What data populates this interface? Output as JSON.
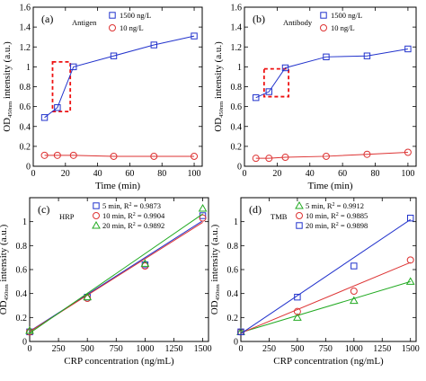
{
  "chart_data": [
    {
      "type": "line",
      "panel_label": "(a)",
      "annotation": "Antigen",
      "xlabel": "Time (min)",
      "ylabel_main": "OD",
      "ylabel_sub": "450nm",
      "ylabel_rest": " intensity (a.u.)",
      "xlim": [
        0,
        105
      ],
      "ylim": [
        0,
        1.6
      ],
      "xticks": [
        0,
        20,
        40,
        60,
        80,
        100
      ],
      "yticks": [
        0,
        0.2,
        0.4,
        0.6,
        0.8,
        1.0,
        1.2,
        1.4,
        1.6
      ],
      "legend_position": "top-right",
      "highlight": {
        "x": [
          12,
          23
        ],
        "y": [
          0.55,
          1.05
        ]
      },
      "series": [
        {
          "name": "1500 ng/L",
          "color": "#2233cc",
          "marker": "square",
          "x": [
            7,
            15,
            25,
            50,
            75,
            100
          ],
          "y": [
            0.49,
            0.59,
            1.0,
            1.11,
            1.22,
            1.31
          ]
        },
        {
          "name": "10 ng/L",
          "color": "#dd3333",
          "marker": "circle",
          "x": [
            7,
            15,
            25,
            50,
            75,
            100
          ],
          "y": [
            0.11,
            0.11,
            0.11,
            0.1,
            0.1,
            0.1
          ]
        }
      ]
    },
    {
      "type": "line",
      "panel_label": "(b)",
      "annotation": "Antibody",
      "xlabel": "Time (min)",
      "ylabel_main": "OD",
      "ylabel_sub": "450nm",
      "ylabel_rest": " intensity (a.u.)",
      "xlim": [
        0,
        105
      ],
      "ylim": [
        0,
        1.6
      ],
      "xticks": [
        0,
        20,
        40,
        60,
        80,
        100
      ],
      "yticks": [
        0,
        0.2,
        0.4,
        0.6,
        0.8,
        1.0,
        1.2,
        1.4,
        1.6
      ],
      "legend_position": "top-right",
      "highlight": {
        "x": [
          12,
          27
        ],
        "y": [
          0.7,
          0.98
        ]
      },
      "series": [
        {
          "name": "1500 ng/L",
          "color": "#2233cc",
          "marker": "square",
          "x": [
            7,
            15,
            25,
            50,
            75,
            100
          ],
          "y": [
            0.69,
            0.75,
            0.99,
            1.1,
            1.11,
            1.18
          ]
        },
        {
          "name": "10 ng/L",
          "color": "#dd3333",
          "marker": "circle",
          "x": [
            7,
            15,
            25,
            50,
            75,
            100
          ],
          "y": [
            0.08,
            0.08,
            0.09,
            0.1,
            0.12,
            0.14
          ]
        }
      ]
    },
    {
      "type": "scatter",
      "panel_label": "(c)",
      "annotation": "HRP",
      "xlabel": "CRP concentration (ng/mL)",
      "ylabel_main": "OD",
      "ylabel_sub": "450nm",
      "ylabel_rest": " intensity (a.u.)",
      "xlim": [
        0,
        1550
      ],
      "ylim": [
        0,
        1.2
      ],
      "xticks": [
        0,
        250,
        500,
        750,
        1000,
        1250,
        1500
      ],
      "yticks": [
        0,
        0.2,
        0.4,
        0.6,
        0.8,
        1.0
      ],
      "legend_position": "top-left",
      "series": [
        {
          "name": "5 min, R",
          "sup": "2",
          "rest": " = 0.9873",
          "color": "#2233cc",
          "marker": "square",
          "x": [
            0,
            500,
            1000,
            1500
          ],
          "y": [
            0.08,
            0.37,
            0.64,
            1.05
          ],
          "fit": [
            0.085,
            0.000615
          ]
        },
        {
          "name": "10 min, R",
          "sup": "2",
          "rest": " = 0.9904",
          "color": "#dd3333",
          "marker": "circle",
          "x": [
            0,
            500,
            1000,
            1500
          ],
          "y": [
            0.08,
            0.36,
            0.63,
            1.03
          ],
          "fit": [
            0.082,
            0.000608
          ]
        },
        {
          "name": "20 min, R",
          "sup": "2",
          "rest": " = 0.9892",
          "color": "#22aa22",
          "marker": "triangle",
          "x": [
            0,
            500,
            1000,
            1500
          ],
          "y": [
            0.09,
            0.37,
            0.65,
            1.11
          ],
          "fit": [
            0.07,
            0.000663
          ]
        }
      ]
    },
    {
      "type": "scatter",
      "panel_label": "(d)",
      "annotation": "TMB",
      "xlabel": "CRP concentration (ng/mL)",
      "ylabel_main": "OD",
      "ylabel_sub": "450nm",
      "ylabel_rest": " intensity (a.u.)",
      "xlim": [
        0,
        1550
      ],
      "ylim": [
        0,
        1.2
      ],
      "xticks": [
        0,
        250,
        500,
        750,
        1000,
        1250,
        1500
      ],
      "yticks": [
        0,
        0.2,
        0.4,
        0.6,
        0.8,
        1.0
      ],
      "legend_position": "top-left",
      "series": [
        {
          "name": "5 min, R",
          "sup": "2",
          "rest": " = 0.9912",
          "color": "#22aa22",
          "marker": "triangle",
          "x": [
            0,
            500,
            1000,
            1500
          ],
          "y": [
            0.08,
            0.2,
            0.34,
            0.5
          ],
          "fit": [
            0.075,
            0.000283
          ]
        },
        {
          "name": "10 min, R",
          "sup": "2",
          "rest": " = 0.9885",
          "color": "#dd3333",
          "marker": "circle",
          "x": [
            0,
            500,
            1000,
            1500
          ],
          "y": [
            0.08,
            0.25,
            0.42,
            0.68
          ],
          "fit": [
            0.07,
            0.000393
          ]
        },
        {
          "name": "20 min, R",
          "sup": "2",
          "rest": " = 0.9898",
          "color": "#2233cc",
          "marker": "square",
          "x": [
            0,
            500,
            1000,
            1500
          ],
          "y": [
            0.08,
            0.37,
            0.63,
            1.03
          ],
          "fit": [
            0.065,
            0.000635
          ]
        }
      ]
    }
  ]
}
